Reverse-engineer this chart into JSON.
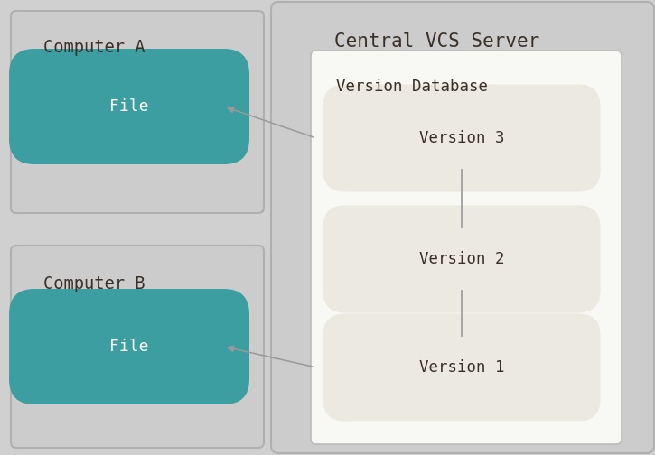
{
  "fig_bg": "#d0d0d0",
  "computer_box_color": "#cccccc",
  "computer_box_edge": "#b0b0b0",
  "server_box_color": "#cccccc",
  "server_box_edge": "#b0b0b0",
  "vdb_box_color": "#f8f8f4",
  "vdb_box_edge": "#bbbbbb",
  "file_box_color": "#3d9ea1",
  "file_text_color": "#ffffff",
  "version_box_color": "#eceae0",
  "version_box_edge": "#ccccbb",
  "version_text_color": "#3a3028",
  "label_color": "#3a3028",
  "server_label_color": "#3a3028",
  "arrow_color": "#999999",
  "title": "Central VCS Server",
  "comp_a_label": "Computer A",
  "comp_b_label": "Computer B",
  "vdb_label": "Version Database",
  "file_label": "File",
  "versions": [
    "Version 3",
    "Version 2",
    "Version 1"
  ],
  "font_family": "monospace",
  "figw": 7.25,
  "figh": 5.04,
  "dpi": 100
}
